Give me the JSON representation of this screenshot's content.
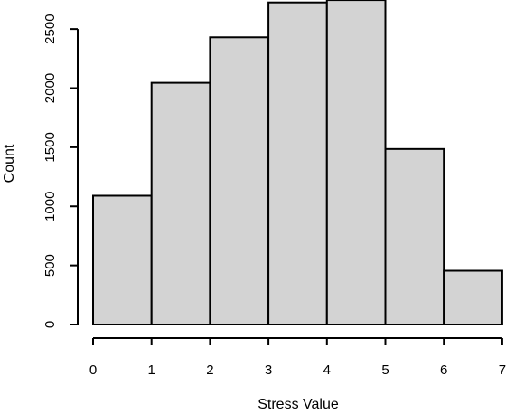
{
  "chart_data": {
    "type": "bar",
    "title": "",
    "xlabel": "Stress Value",
    "ylabel": "Count",
    "bins": [
      {
        "from": 0,
        "to": 1,
        "count": 1090
      },
      {
        "from": 1,
        "to": 2,
        "count": 2045
      },
      {
        "from": 2,
        "to": 3,
        "count": 2430
      },
      {
        "from": 3,
        "to": 4,
        "count": 2725
      },
      {
        "from": 4,
        "to": 5,
        "count": 2745
      },
      {
        "from": 5,
        "to": 6,
        "count": 1485
      },
      {
        "from": 6,
        "to": 7,
        "count": 455
      }
    ],
    "xlim": [
      0,
      7
    ],
    "ylim": [
      0,
      2750
    ],
    "x_ticks": [
      "0",
      "1",
      "2",
      "3",
      "4",
      "5",
      "6",
      "7"
    ],
    "y_ticks": [
      "0",
      "500",
      "1000",
      "1500",
      "2000",
      "2500"
    ],
    "grid": false,
    "legend": false,
    "colors": {
      "bar_fill": "#d3d3d3",
      "bar_stroke": "#000000",
      "axis": "#000000"
    }
  }
}
